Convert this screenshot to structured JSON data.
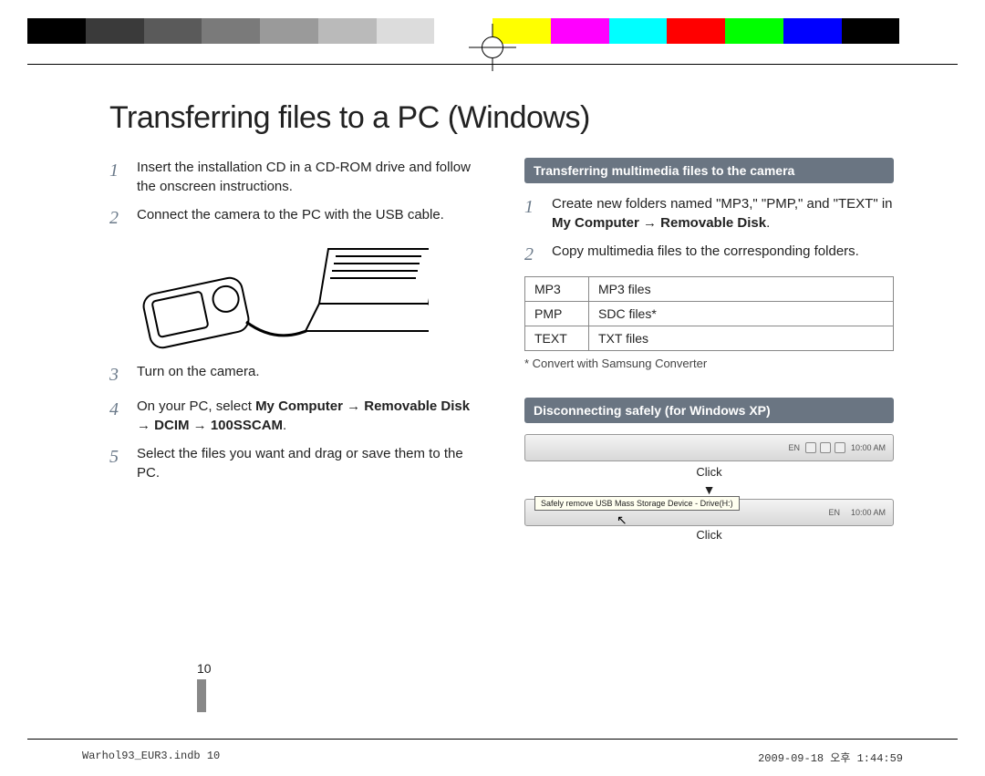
{
  "colorbar": [
    "#000000",
    "#3a3a3a",
    "#5a5a5a",
    "#7a7a7a",
    "#9a9a9a",
    "#bababa",
    "#dcdcdc",
    "#ffffff",
    "#ffff00",
    "#ff00ff",
    "#00ffff",
    "#ff0000",
    "#00ff00",
    "#0000ff",
    "#000000",
    "#ffffff"
  ],
  "title": "Transferring files to a PC (Windows)",
  "left_steps": [
    {
      "n": "1",
      "html": "Insert the installation CD in a CD-ROM drive and follow the onscreen instructions."
    },
    {
      "n": "2",
      "html": "Connect the camera to the PC with the USB cable."
    },
    {
      "n": "3",
      "html": "Turn on the camera."
    },
    {
      "n": "4",
      "html": "On your PC, select <b>My Computer → Removable Disk → DCIM → 100SSCAM</b>."
    },
    {
      "n": "5",
      "html": "Select the files you want and drag or save them to the PC."
    }
  ],
  "right": {
    "heading1": "Transferring multimedia files to the camera",
    "steps": [
      {
        "n": "1",
        "html": "Create new folders named \"MP3,\" \"PMP,\" and \"TEXT\" in <b>My Computer → Removable Disk</b>."
      },
      {
        "n": "2",
        "html": "Copy multimedia files to the corresponding folders."
      }
    ],
    "table": [
      [
        "MP3",
        "MP3 files"
      ],
      [
        "PMP",
        "SDC files*"
      ],
      [
        "TEXT",
        "TXT files"
      ]
    ],
    "footnote": "* Convert with Samsung Converter",
    "heading2": "Disconnecting safely (for Windows XP)",
    "taskbar_time": "10:00 AM",
    "taskbar_lang": "EN",
    "click": "Click",
    "arrow": "▼",
    "tooltip": "Safely remove USB Mass Storage Device - Drive(H:)"
  },
  "page_number": "10",
  "footer_left": "Warhol93_EUR3.indb   10",
  "footer_right": "2009-09-18   오후 1:44:59"
}
